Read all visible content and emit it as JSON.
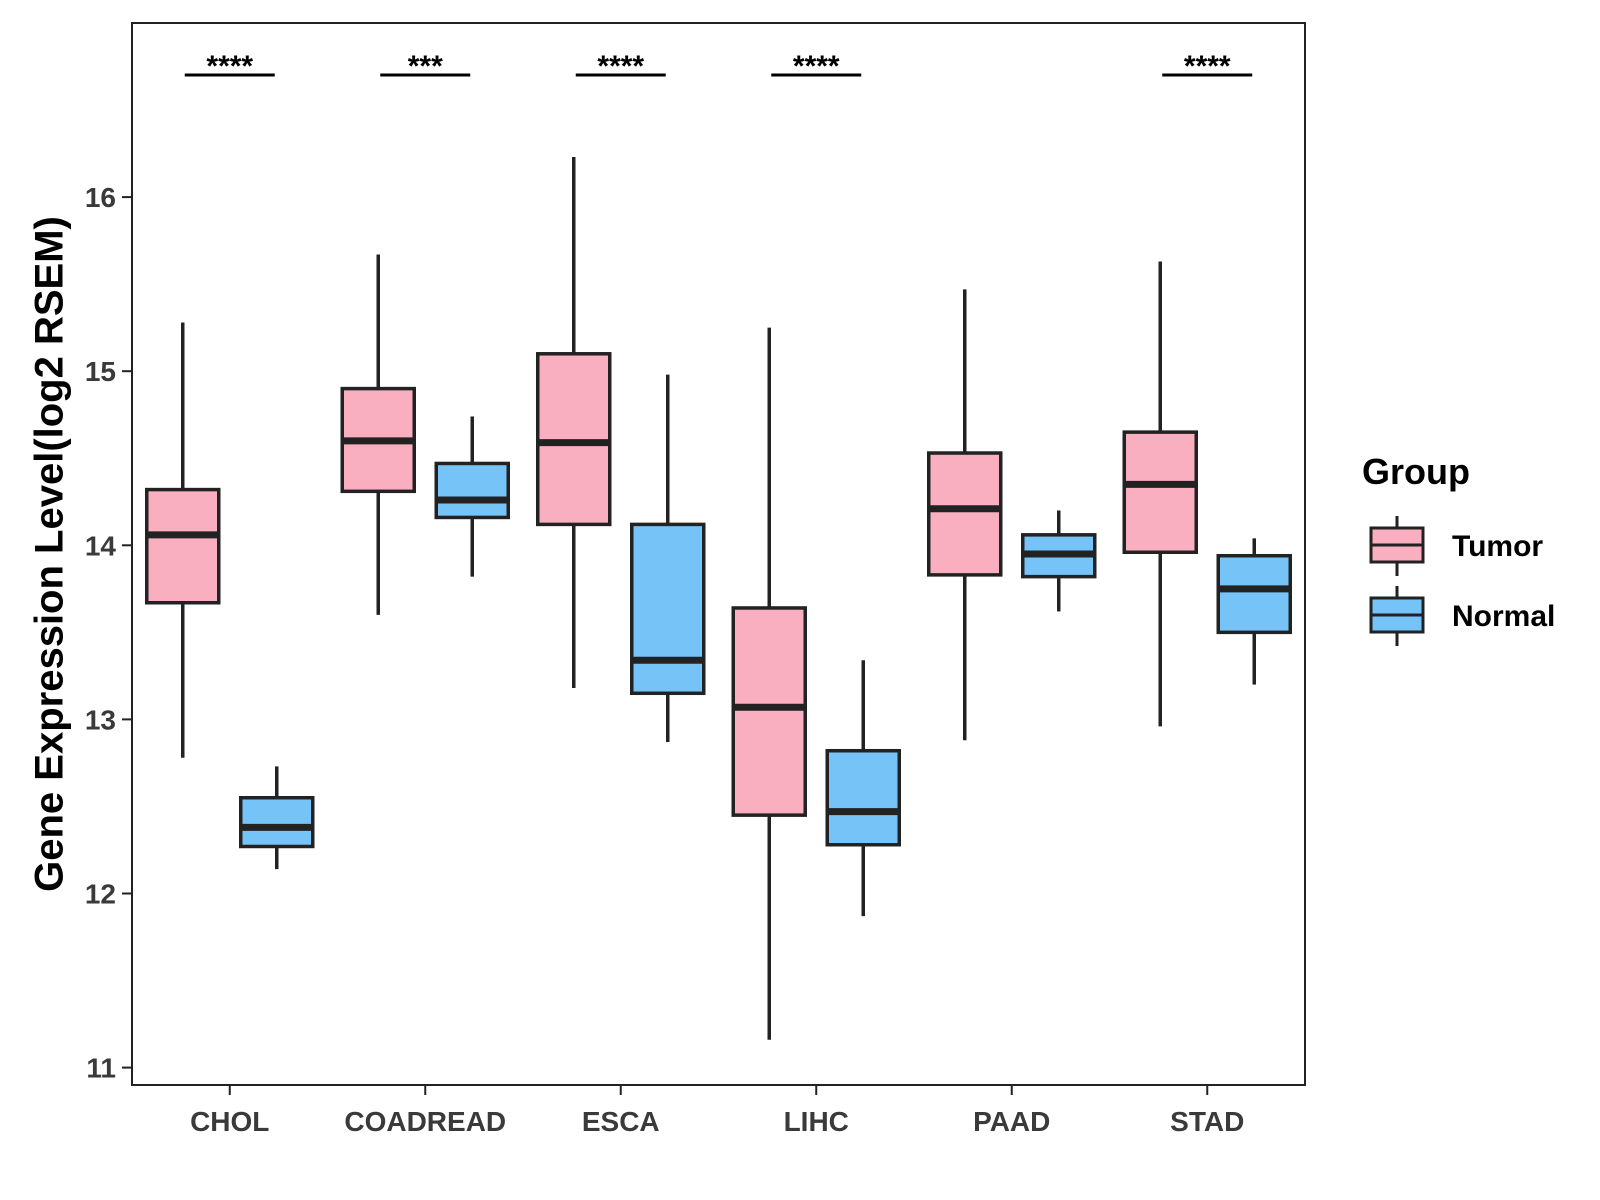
{
  "chart_data": {
    "type": "boxplot",
    "title": "",
    "xlabel": "",
    "ylabel": "Gene Expression Level(log2 RSEM)",
    "ylim": [
      10.9,
      17.0
    ],
    "yticks": [
      11,
      12,
      13,
      14,
      15,
      16
    ],
    "categories": [
      "CHOL",
      "COADREAD",
      "ESCA",
      "LIHC",
      "PAAD",
      "STAD"
    ],
    "legend": {
      "title": "Group",
      "placement": "right",
      "entries": [
        {
          "name": "Tumor",
          "color": "#f9afc0"
        },
        {
          "name": "Normal",
          "color": "#76c3f8"
        }
      ]
    },
    "series": [
      {
        "name": "Tumor",
        "color": "#f9afc0",
        "boxes": [
          {
            "whisker_low": 12.78,
            "q1": 13.67,
            "median": 14.06,
            "q3": 14.32,
            "whisker_high": 15.28
          },
          {
            "whisker_low": 13.6,
            "q1": 14.31,
            "median": 14.6,
            "q3": 14.9,
            "whisker_high": 15.67
          },
          {
            "whisker_low": 13.18,
            "q1": 14.12,
            "median": 14.59,
            "q3": 15.1,
            "whisker_high": 16.23
          },
          {
            "whisker_low": 11.16,
            "q1": 12.45,
            "median": 13.07,
            "q3": 13.64,
            "whisker_high": 15.25
          },
          {
            "whisker_low": 12.88,
            "q1": 13.83,
            "median": 14.21,
            "q3": 14.53,
            "whisker_high": 15.47
          },
          {
            "whisker_low": 12.96,
            "q1": 13.96,
            "median": 14.35,
            "q3": 14.65,
            "whisker_high": 15.63
          }
        ]
      },
      {
        "name": "Normal",
        "color": "#76c3f8",
        "boxes": [
          {
            "whisker_low": 12.14,
            "q1": 12.27,
            "median": 12.38,
            "q3": 12.55,
            "whisker_high": 12.73
          },
          {
            "whisker_low": 13.82,
            "q1": 14.16,
            "median": 14.26,
            "q3": 14.47,
            "whisker_high": 14.74
          },
          {
            "whisker_low": 12.87,
            "q1": 13.15,
            "median": 13.34,
            "q3": 14.12,
            "whisker_high": 14.98
          },
          {
            "whisker_low": 11.87,
            "q1": 12.28,
            "median": 12.47,
            "q3": 12.82,
            "whisker_high": 13.34
          },
          {
            "whisker_low": 13.62,
            "q1": 13.82,
            "median": 13.95,
            "q3": 14.06,
            "whisker_high": 14.2
          },
          {
            "whisker_low": 13.2,
            "q1": 13.5,
            "median": 13.75,
            "q3": 13.94,
            "whisker_high": 14.04
          }
        ]
      }
    ],
    "significance": [
      "****",
      "***",
      "****",
      "****",
      "",
      "****"
    ]
  }
}
